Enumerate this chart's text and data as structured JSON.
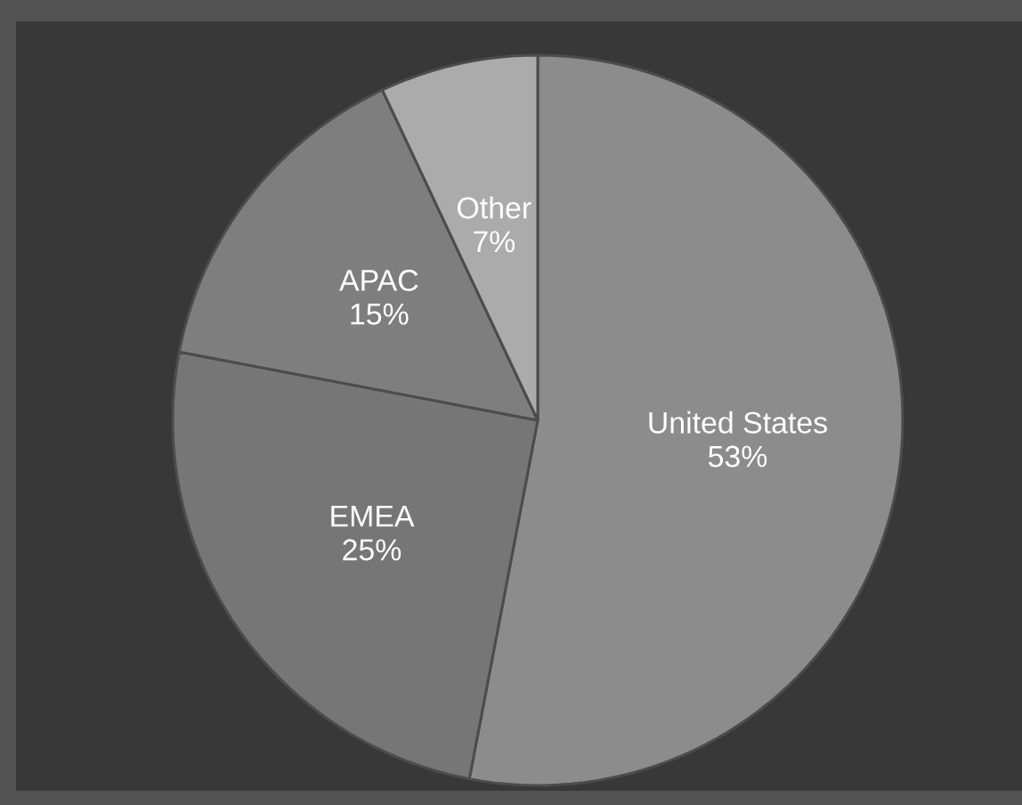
{
  "chart_data": {
    "type": "pie",
    "categories": [
      "United States",
      "EMEA",
      "APAC",
      "Other"
    ],
    "values": [
      53,
      25,
      15,
      7
    ],
    "value_labels": [
      "53%",
      "25%",
      "15%",
      "7%"
    ],
    "colors": [
      "#8c8c8c",
      "#767676",
      "#7e7e7e",
      "#ababab"
    ]
  }
}
